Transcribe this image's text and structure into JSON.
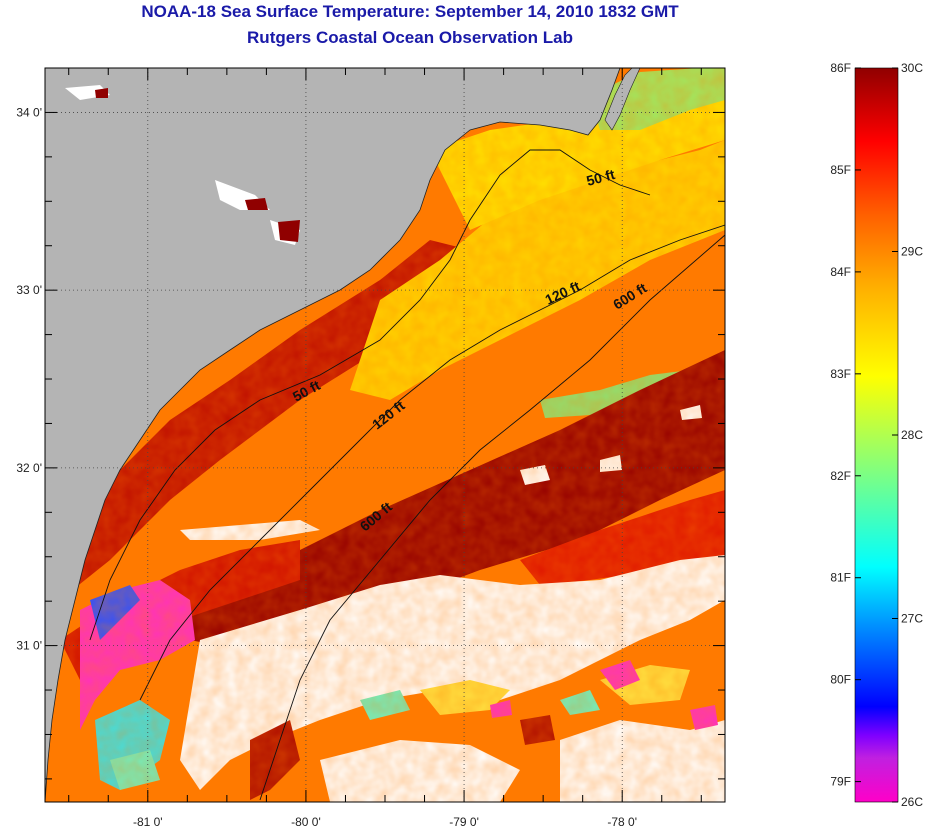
{
  "header": {
    "title": "NOAA-18 Sea Surface Temperature:  September 14, 2010 1832 GMT",
    "subtitle": "Rutgers Coastal Ocean Observation Lab"
  },
  "map": {
    "lon_range": [
      -81.65,
      -77.35
    ],
    "lat_range": [
      30.12,
      34.25
    ],
    "lon_ticks": [
      {
        "value": -81,
        "label": "-81 0'"
      },
      {
        "value": -80,
        "label": "-80 0'"
      },
      {
        "value": -79,
        "label": "-79 0'"
      },
      {
        "value": -78,
        "label": "-78 0'"
      }
    ],
    "lat_ticks": [
      {
        "value": 34,
        "label": "34 0'"
      },
      {
        "value": 33,
        "label": "33 0'"
      },
      {
        "value": 32,
        "label": "32 0'"
      },
      {
        "value": 31,
        "label": "31 0'"
      }
    ],
    "contour_labels": [
      "50 ft",
      "50 ft",
      "120 ft",
      "120 ft",
      "600 ft",
      "600 ft"
    ]
  },
  "colorbar": {
    "celsius_labels": [
      "30C",
      "29C",
      "28C",
      "27C",
      "26C"
    ],
    "fahrenheit_labels": [
      "86F",
      "85F",
      "84F",
      "83F",
      "82F",
      "81F",
      "80F",
      "79F"
    ],
    "colors": [
      "#ff00c8",
      "#8000ff",
      "#0000ff",
      "#0090ff",
      "#00ffff",
      "#80ff80",
      "#ffff00",
      "#ffb000",
      "#ff6000",
      "#ff0000",
      "#900000"
    ]
  },
  "colors": {
    "land": "#b4b4b4",
    "cloud": "#ffffff",
    "title": "#1a1aa8"
  }
}
